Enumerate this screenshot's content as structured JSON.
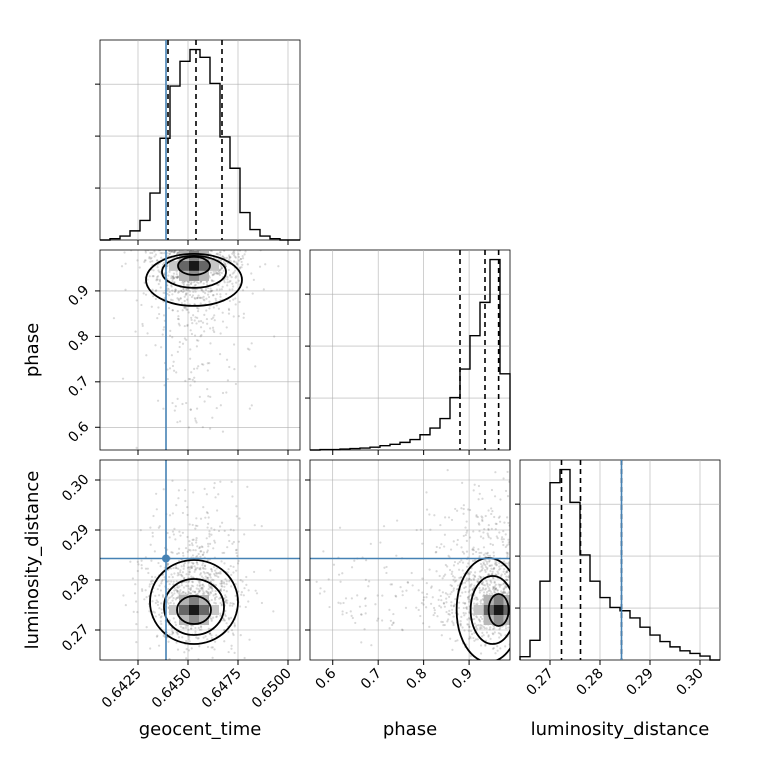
{
  "chart_data": {
    "type": "corner",
    "parameters": [
      "geocent_time",
      "phase",
      "luminosity_distance"
    ],
    "truth": {
      "geocent_time": 0.6439,
      "phase": null,
      "luminosity_distance": 0.2843
    },
    "truth_color": "#4682b4",
    "quantiles": {
      "geocent_time": [
        0.644,
        0.6454,
        0.6467
      ],
      "phase": [
        0.88,
        0.935,
        0.965
      ],
      "luminosity_distance": [
        0.2723,
        0.2761,
        0.2843
      ]
    },
    "ranges": {
      "geocent_time": [
        0.6406,
        0.6506
      ],
      "phase": [
        0.55,
        0.99
      ],
      "luminosity_distance": [
        0.264,
        0.304
      ]
    },
    "ticks": {
      "geocent_time": [
        "0.6425",
        "0.6450",
        "0.6475",
        "0.6500"
      ],
      "phase": [
        "0.6",
        "0.7",
        "0.8",
        "0.9"
      ],
      "luminosity_distance": [
        "0.27",
        "0.28",
        "0.29",
        "0.30"
      ]
    },
    "histograms": {
      "geocent_time": {
        "bin_edges": [
          0.6406,
          0.6411,
          0.6416,
          0.6421,
          0.6426,
          0.6431,
          0.6436,
          0.6441,
          0.6446,
          0.6451,
          0.6456,
          0.6461,
          0.6466,
          0.6471,
          0.6476,
          0.6481,
          0.6486,
          0.6491,
          0.6496,
          0.6501,
          0.6506
        ],
        "counts": [
          0,
          1,
          3,
          7,
          15,
          36,
          78,
          118,
          137,
          146,
          140,
          120,
          79,
          55,
          21,
          8,
          3,
          1,
          0,
          0
        ]
      },
      "phase": {
        "bin_edges": [
          0.55,
          0.572,
          0.594,
          0.616,
          0.638,
          0.66,
          0.682,
          0.704,
          0.726,
          0.748,
          0.77,
          0.792,
          0.814,
          0.836,
          0.858,
          0.88,
          0.902,
          0.924,
          0.946,
          0.968,
          0.99
        ],
        "counts": [
          0,
          1,
          1,
          2,
          3,
          4,
          6,
          9,
          12,
          16,
          22,
          32,
          46,
          66,
          110,
          170,
          240,
          310,
          400,
          160
        ]
      },
      "luminosity_distance": {
        "bin_edges": [
          0.264,
          0.266,
          0.268,
          0.27,
          0.272,
          0.274,
          0.276,
          0.278,
          0.28,
          0.282,
          0.284,
          0.286,
          0.288,
          0.29,
          0.292,
          0.294,
          0.296,
          0.298,
          0.3,
          0.302,
          0.304
        ],
        "counts": [
          5,
          30,
          120,
          270,
          290,
          240,
          160,
          120,
          95,
          80,
          75,
          64,
          50,
          38,
          28,
          20,
          14,
          10,
          6,
          0
        ]
      }
    },
    "joint": {
      "geocent_time__phase": {
        "mean": [
          0.6453,
          0.93
        ],
        "std": [
          0.0012,
          0.055
        ],
        "peak": [
          0.6453,
          0.955
        ]
      },
      "geocent_time__luminosity_distance": {
        "mean": [
          0.6453,
          0.276
        ],
        "std": [
          0.0012,
          0.006
        ],
        "peak": [
          0.6453,
          0.274
        ]
      },
      "phase__luminosity_distance": {
        "mean": [
          0.93,
          0.276
        ],
        "std": [
          0.06,
          0.006
        ],
        "peak": [
          0.965,
          0.274
        ]
      }
    }
  }
}
